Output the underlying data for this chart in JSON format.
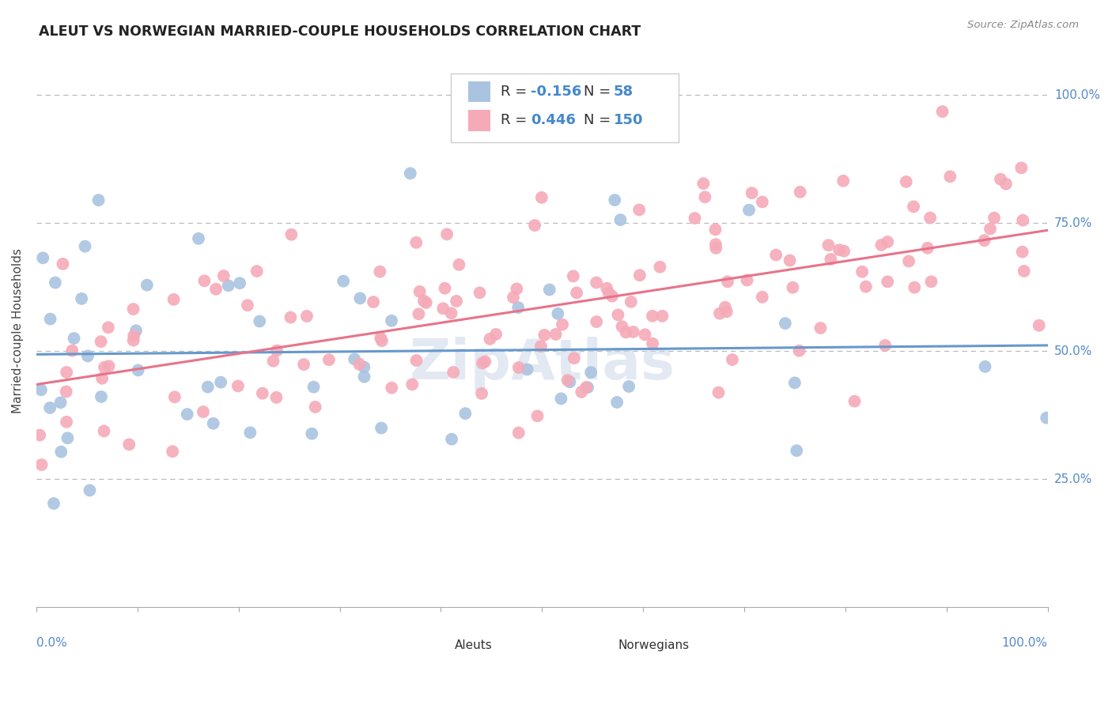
{
  "title": "ALEUT VS NORWEGIAN MARRIED-COUPLE HOUSEHOLDS CORRELATION CHART",
  "source": "Source: ZipAtlas.com",
  "ylabel": "Married-couple Households",
  "legend_aleut_R": "-0.156",
  "legend_aleut_N": "58",
  "legend_norw_R": "0.446",
  "legend_norw_N": "150",
  "aleut_color": "#aac4e0",
  "norw_color": "#f5aab8",
  "aleut_line_color": "#6699cc",
  "norw_line_color": "#e8738a",
  "background_color": "#ffffff",
  "grid_color": "#bbbbbb",
  "ytick_labels": [
    "25.0%",
    "50.0%",
    "75.0%",
    "100.0%"
  ],
  "ytick_values": [
    0.25,
    0.5,
    0.75,
    1.0
  ],
  "watermark": "ZipAtlas",
  "aleut_seed": 77,
  "norw_seed": 55
}
